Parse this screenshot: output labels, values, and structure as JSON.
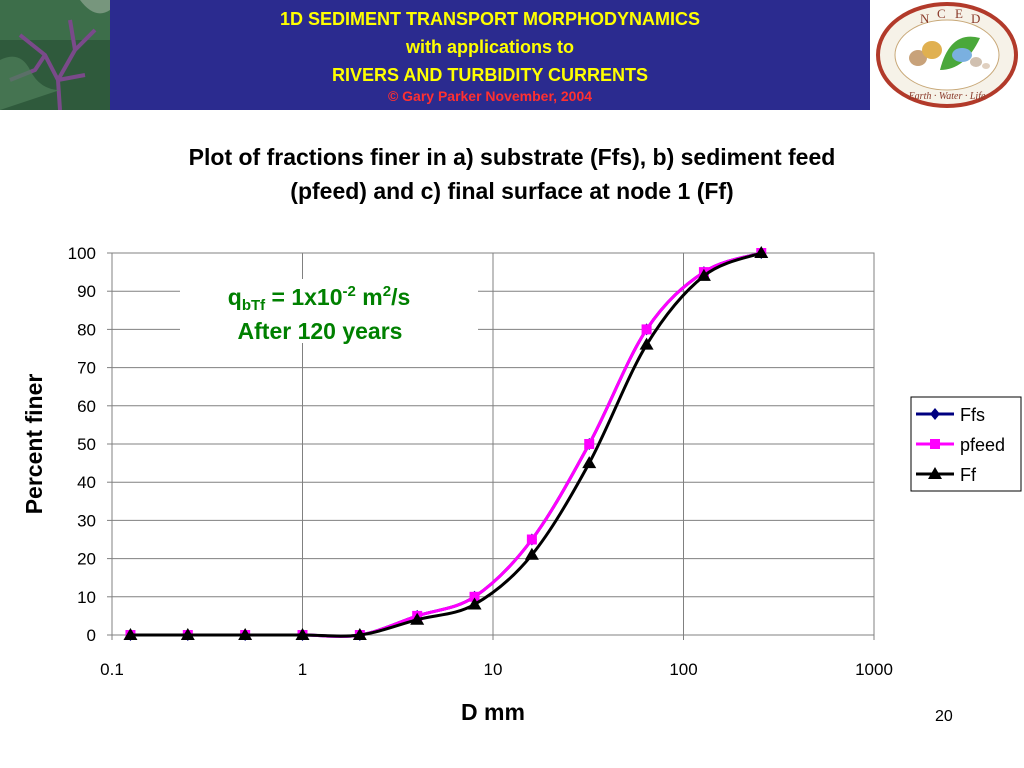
{
  "banner": {
    "line1": "1D SEDIMENT TRANSPORT MORPHODYNAMICS",
    "line2": "with applications to",
    "line3": "RIVERS AND TURBIDITY CURRENTS",
    "line4": "© Gary Parker November, 2004",
    "logo_letters": [
      "N",
      "C",
      "E",
      "D"
    ],
    "logo_motto": "Earth · Water · Life"
  },
  "slide_title_line1": "Plot of fractions finer in a) substrate (Ffs), b) sediment feed",
  "slide_title_line2": "(pfeed) and c) final surface at node 1 (Ff)",
  "slide_number": "20",
  "chart_data": {
    "type": "line",
    "title": "",
    "xlabel": "D mm",
    "ylabel": "Percent finer",
    "x_scale": "log",
    "xlim": [
      0.1,
      1000
    ],
    "ylim": [
      0,
      100
    ],
    "x_ticks": [
      0.1,
      1,
      10,
      100,
      1000
    ],
    "x_tick_labels": [
      "0.1",
      "1",
      "10",
      "100",
      "1000"
    ],
    "y_ticks": [
      0,
      10,
      20,
      30,
      40,
      50,
      60,
      70,
      80,
      90,
      100
    ],
    "grid": "horizontal and vertical major",
    "legend_position": "right",
    "annotation": {
      "q_symbol": "q",
      "q_subscript": "bTf",
      "q_equals": " = 1x10",
      "q_exponent": "-2",
      "q_unit": " m",
      "q_unit_exp": "2",
      "q_unit_tail": "/s",
      "line2": "After 120 years",
      "color": "#008000"
    },
    "series": [
      {
        "name": "Ffs",
        "color": "#000080",
        "marker": "diamond",
        "x": [
          0.125,
          0.25,
          0.5,
          1,
          2,
          4,
          8,
          16,
          32,
          64,
          128,
          256
        ],
        "y": [
          0,
          0,
          0,
          0,
          0,
          5,
          10,
          25,
          50,
          80,
          95,
          100
        ]
      },
      {
        "name": "pfeed",
        "color": "#ff00ff",
        "marker": "square",
        "x": [
          0.125,
          0.25,
          0.5,
          1,
          2,
          4,
          8,
          16,
          32,
          64,
          128,
          256
        ],
        "y": [
          0,
          0,
          0,
          0,
          0,
          5,
          10,
          25,
          50,
          80,
          95,
          100
        ]
      },
      {
        "name": "Ff",
        "color": "#000000",
        "marker": "triangle",
        "x": [
          0.125,
          0.25,
          0.5,
          1,
          2,
          4,
          8,
          16,
          32,
          64,
          128,
          256
        ],
        "y": [
          0,
          0,
          0,
          0,
          0,
          4,
          8,
          21,
          45,
          76,
          94,
          100
        ]
      }
    ]
  }
}
